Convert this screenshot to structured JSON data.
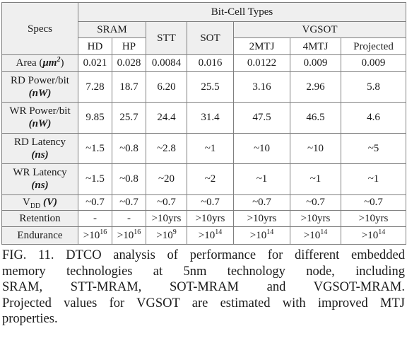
{
  "table": {
    "header": {
      "specs": "Specs",
      "bit_cell_types": "Bit-Cell Types",
      "groups": {
        "sram": "SRAM",
        "stt": "STT",
        "sot": "SOT",
        "vgsot": "VGSOT"
      },
      "subcols": {
        "hd": "HD",
        "hp": "HP",
        "mtj2": "2MTJ",
        "mtj4": "4MTJ",
        "projected": "Projected"
      }
    },
    "rows": [
      {
        "label": "Area (",
        "unit": "μm",
        "unit_sup": "2",
        "label_end": ")",
        "values": [
          "0.021",
          "0.028",
          "0.0084",
          "0.016",
          "0.0122",
          "0.009",
          "0.009"
        ]
      },
      {
        "label": "RD Power/bit",
        "unit": "(nW)",
        "values": [
          "7.28",
          "18.7",
          "6.20",
          "25.5",
          "3.16",
          "2.96",
          "5.8"
        ]
      },
      {
        "label": "WR Power/bit",
        "unit": "(nW)",
        "values": [
          "9.85",
          "25.7",
          "24.4",
          "31.4",
          "47.5",
          "46.5",
          "4.6"
        ]
      },
      {
        "label": "RD Latency",
        "unit": "(ns)",
        "values": [
          "~1.5",
          "~0.8",
          "~2.8",
          "~1",
          "~10",
          "~10",
          "~5"
        ]
      },
      {
        "label": "WR Latency",
        "unit": "(ns)",
        "values": [
          "~1.5",
          "~0.8",
          "~20",
          "~2",
          "~1",
          "~1",
          "~1"
        ]
      },
      {
        "label": "V",
        "label_sub": "DD",
        "unit": "(V)",
        "values": [
          "~0.7",
          "~0.7",
          "~0.7",
          "~0.7",
          "~0.7",
          "~0.7",
          "~0.7"
        ]
      },
      {
        "label": "Retention",
        "values": [
          "-",
          "-",
          ">10yrs",
          ">10yrs",
          ">10yrs",
          ">10yrs",
          ">10yrs"
        ]
      },
      {
        "label": "Endurance",
        "values": [
          ">10",
          ">10",
          ">10",
          ">10",
          ">10",
          ">10",
          ">10"
        ],
        "exponents": [
          "16",
          "16",
          "9",
          "14",
          "14",
          "14",
          "14"
        ]
      }
    ]
  },
  "caption": {
    "lines": [
      "FIG. 11. DTCO analysis of performance for different embedded",
      "memory technologies at 5nm technology node, including",
      "SRAM, STT-MRAM, SOT-MRAM and VGSOT-MRAM.",
      "Projected values for VGSOT are estimated with improved MTJ",
      "properties."
    ]
  }
}
